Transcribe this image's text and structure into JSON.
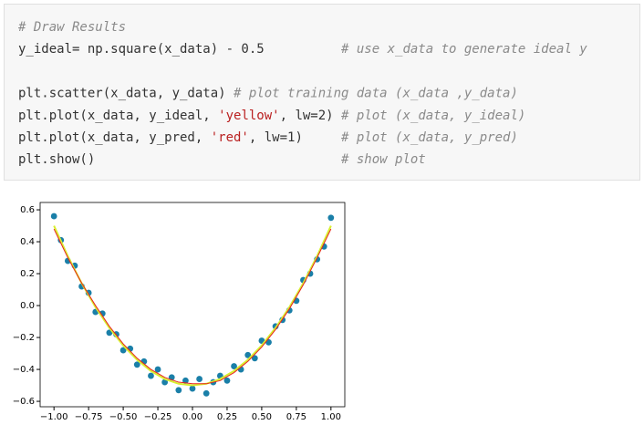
{
  "code": {
    "lines": [
      [
        {
          "text": "# Draw Results",
          "style": "comment"
        }
      ],
      [
        {
          "text": "y_ideal= np.square(x_data) - 0.5          ",
          "style": "code"
        },
        {
          "text": "# use x_data to generate ideal y",
          "style": "comment"
        }
      ],
      [],
      [
        {
          "text": "plt.scatter(x_data, y_data) ",
          "style": "code"
        },
        {
          "text": "# plot training data (x_data ,y_data)",
          "style": "comment"
        }
      ],
      [
        {
          "text": "plt.plot(x_data, y_ideal, ",
          "style": "code"
        },
        {
          "text": "'yellow'",
          "style": "string"
        },
        {
          "text": ", lw=2) ",
          "style": "code"
        },
        {
          "text": "# plot (x_data, y_ideal)",
          "style": "comment"
        }
      ],
      [
        {
          "text": "plt.plot(x_data, y_pred, ",
          "style": "code"
        },
        {
          "text": "'red'",
          "style": "string"
        },
        {
          "text": ", lw=1)     ",
          "style": "code"
        },
        {
          "text": "# plot (x_data, y_pred)",
          "style": "comment"
        }
      ],
      [
        {
          "text": "plt.show()                                ",
          "style": "code"
        },
        {
          "text": "# show plot",
          "style": "comment"
        }
      ]
    ]
  },
  "chart_data": {
    "type": "scatter",
    "xlim": [
      -1.1,
      1.1
    ],
    "ylim": [
      -0.634,
      0.646
    ],
    "xticks": [
      {
        "value": -1,
        "label": "−1.00"
      },
      {
        "value": -0.75,
        "label": "−0.75"
      },
      {
        "value": -0.5,
        "label": "−0.50"
      },
      {
        "value": -0.25,
        "label": "−0.25"
      },
      {
        "value": 0,
        "label": "0.00"
      },
      {
        "value": 0.25,
        "label": "0.25"
      },
      {
        "value": 0.5,
        "label": "0.50"
      },
      {
        "value": 0.75,
        "label": "0.75"
      },
      {
        "value": 1,
        "label": "1.00"
      }
    ],
    "yticks": [
      {
        "value": -0.6,
        "label": "−0.6"
      },
      {
        "value": -0.4,
        "label": "−0.4"
      },
      {
        "value": -0.2,
        "label": "−0.2"
      },
      {
        "value": 0,
        "label": "0.0"
      },
      {
        "value": 0.2,
        "label": "0.2"
      },
      {
        "value": 0.4,
        "label": "0.4"
      },
      {
        "value": 0.6,
        "label": "0.6"
      }
    ],
    "series": [
      {
        "type": "scatter",
        "color": "#1a7fa8",
        "x": [
          -1,
          -0.95,
          -0.9,
          -0.85,
          -0.8,
          -0.75,
          -0.7,
          -0.65,
          -0.6,
          -0.55,
          -0.5,
          -0.45,
          -0.4,
          -0.35,
          -0.3,
          -0.25,
          -0.2,
          -0.15,
          -0.1,
          -0.05,
          0,
          0.05,
          0.1,
          0.15,
          0.2,
          0.25,
          0.3,
          0.35,
          0.4,
          0.45,
          0.5,
          0.55,
          0.6,
          0.65,
          0.7,
          0.75,
          0.8,
          0.85,
          0.9,
          0.95,
          1
        ],
        "values": [
          0.56,
          0.41,
          0.28,
          0.25,
          0.12,
          0.08,
          -0.04,
          -0.05,
          -0.17,
          -0.18,
          -0.28,
          -0.27,
          -0.37,
          -0.35,
          -0.44,
          -0.4,
          -0.48,
          -0.45,
          -0.53,
          -0.47,
          -0.52,
          -0.46,
          -0.55,
          -0.48,
          -0.44,
          -0.47,
          -0.38,
          -0.4,
          -0.31,
          -0.33,
          -0.22,
          -0.23,
          -0.13,
          -0.09,
          -0.03,
          0.03,
          0.16,
          0.2,
          0.29,
          0.37,
          0.55
        ]
      },
      {
        "type": "line",
        "color": "#d8ef30",
        "width": 2,
        "x": [
          -1,
          -0.9,
          -0.8,
          -0.7,
          -0.6,
          -0.5,
          -0.4,
          -0.3,
          -0.2,
          -0.1,
          0,
          0.1,
          0.2,
          0.3,
          0.4,
          0.5,
          0.6,
          0.7,
          0.8,
          0.9,
          1
        ],
        "values": [
          0.5,
          0.31,
          0.14,
          -0.01,
          -0.14,
          -0.25,
          -0.34,
          -0.41,
          -0.46,
          -0.49,
          -0.5,
          -0.49,
          -0.46,
          -0.41,
          -0.34,
          -0.25,
          -0.14,
          -0.01,
          0.14,
          0.31,
          0.5
        ]
      },
      {
        "type": "line",
        "color": "#e8231c",
        "width": 1,
        "x": [
          -1,
          -0.9,
          -0.8,
          -0.7,
          -0.6,
          -0.5,
          -0.4,
          -0.3,
          -0.2,
          -0.1,
          0,
          0.1,
          0.2,
          0.3,
          0.4,
          0.5,
          0.6,
          0.7,
          0.8,
          0.9,
          1
        ],
        "values": [
          0.48,
          0.3,
          0.14,
          0.0,
          -0.13,
          -0.24,
          -0.33,
          -0.4,
          -0.45,
          -0.48,
          -0.49,
          -0.49,
          -0.47,
          -0.42,
          -0.35,
          -0.26,
          -0.15,
          -0.02,
          0.13,
          0.3,
          0.48
        ]
      }
    ]
  }
}
